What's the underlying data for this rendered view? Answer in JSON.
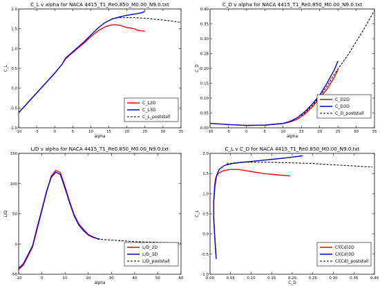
{
  "chart_data": [
    {
      "type": "line",
      "title": "C_L v alpha for NACA 4415_T1_Re0.850_M0.00_N9.0.txt",
      "xlabel": "alpha",
      "ylabel": "C_L",
      "xlim": [
        -10,
        35
      ],
      "ylim": [
        -1.0,
        2.0
      ],
      "xticks": [
        -10,
        -5,
        0,
        5,
        10,
        15,
        20,
        25,
        30,
        35
      ],
      "yticks": [
        -1.0,
        -0.5,
        0.0,
        0.5,
        1.0,
        1.5,
        2.0
      ],
      "xtick_labels": [
        "-10",
        "-5",
        "0",
        "5",
        "10",
        "15",
        "20",
        "25",
        "30",
        "35"
      ],
      "ytick_labels": [
        "-1.0",
        "-0.5",
        "0.0",
        "0.5",
        "1.0",
        "1.5",
        "2.0"
      ],
      "legend_position": "bottom-right",
      "series": [
        {
          "name": "C_L2D",
          "color": "#ff0000",
          "style": "solid",
          "points": [
            [
              -10,
              -0.62
            ],
            [
              -8,
              -0.42
            ],
            [
              -6,
              -0.22
            ],
            [
              -4,
              -0.02
            ],
            [
              -2,
              0.18
            ],
            [
              0,
              0.38
            ],
            [
              2,
              0.6
            ],
            [
              3,
              0.74
            ],
            [
              4,
              0.82
            ],
            [
              6,
              0.98
            ],
            [
              8,
              1.13
            ],
            [
              10,
              1.3
            ],
            [
              12,
              1.45
            ],
            [
              14,
              1.55
            ],
            [
              15,
              1.58
            ],
            [
              16,
              1.6
            ],
            [
              17,
              1.6
            ],
            [
              18,
              1.59
            ],
            [
              19,
              1.56
            ],
            [
              20,
              1.53
            ],
            [
              21,
              1.52
            ],
            [
              22,
              1.5
            ],
            [
              23,
              1.46
            ],
            [
              24,
              1.45
            ],
            [
              25,
              1.44
            ]
          ]
        },
        {
          "name": "C_L3D",
          "color": "#0000cc",
          "style": "solid",
          "points": [
            [
              -10,
              -0.62
            ],
            [
              -8,
              -0.42
            ],
            [
              -6,
              -0.22
            ],
            [
              -4,
              -0.02
            ],
            [
              -2,
              0.18
            ],
            [
              0,
              0.38
            ],
            [
              2,
              0.6
            ],
            [
              3,
              0.76
            ],
            [
              4,
              0.84
            ],
            [
              6,
              1.0
            ],
            [
              8,
              1.16
            ],
            [
              10,
              1.34
            ],
            [
              12,
              1.52
            ],
            [
              14,
              1.66
            ],
            [
              16,
              1.75
            ],
            [
              18,
              1.8
            ],
            [
              20,
              1.84
            ],
            [
              22,
              1.87
            ],
            [
              24,
              1.9
            ],
            [
              25,
              1.94
            ]
          ]
        },
        {
          "name": "C_L_poststall",
          "color": "#000000",
          "style": "dashed",
          "points": [
            [
              16,
              1.76
            ],
            [
              18,
              1.78
            ],
            [
              20,
              1.78
            ],
            [
              22,
              1.78
            ],
            [
              24,
              1.77
            ],
            [
              26,
              1.76
            ],
            [
              28,
              1.74
            ],
            [
              30,
              1.72
            ],
            [
              32,
              1.7
            ],
            [
              35,
              1.66
            ]
          ]
        }
      ]
    },
    {
      "type": "line",
      "title": "C_D v alpha for NACA 4415_T1_Re0.850_M0.00_N9.0.txt",
      "xlabel": "alpha",
      "ylabel": "C_D",
      "xlim": [
        -10,
        35
      ],
      "ylim": [
        0.0,
        0.4
      ],
      "xticks": [
        -10,
        -5,
        0,
        5,
        10,
        15,
        20,
        25,
        30,
        35
      ],
      "yticks": [
        0.0,
        0.05,
        0.1,
        0.15,
        0.2,
        0.25,
        0.3,
        0.35,
        0.4
      ],
      "xtick_labels": [
        "-10",
        "-5",
        "0",
        "5",
        "10",
        "15",
        "20",
        "25",
        "30",
        "35"
      ],
      "ytick_labels": [
        "0.00",
        "0.05",
        "0.10",
        "0.15",
        "0.20",
        "0.25",
        "0.30",
        "0.35",
        "0.40"
      ],
      "legend_position": "center-right",
      "series": [
        {
          "name": "C_D2D",
          "color": "#ff0000",
          "style": "solid",
          "points": [
            [
              -10,
              0.015
            ],
            [
              -5,
              0.011
            ],
            [
              0,
              0.008
            ],
            [
              5,
              0.009
            ],
            [
              10,
              0.014
            ],
            [
              12,
              0.02
            ],
            [
              14,
              0.03
            ],
            [
              16,
              0.047
            ],
            [
              18,
              0.07
            ],
            [
              20,
              0.1
            ],
            [
              22,
              0.13
            ],
            [
              24,
              0.17
            ],
            [
              25,
              0.195
            ]
          ]
        },
        {
          "name": "C_D3D",
          "color": "#0000cc",
          "style": "solid",
          "points": [
            [
              -10,
              0.015
            ],
            [
              -5,
              0.011
            ],
            [
              0,
              0.008
            ],
            [
              5,
              0.009
            ],
            [
              10,
              0.015
            ],
            [
              12,
              0.022
            ],
            [
              14,
              0.035
            ],
            [
              16,
              0.055
            ],
            [
              18,
              0.08
            ],
            [
              20,
              0.11
            ],
            [
              22,
              0.15
            ],
            [
              24,
              0.195
            ],
            [
              25,
              0.225
            ]
          ]
        },
        {
          "name": "C_D_poststall",
          "color": "#000000",
          "style": "dashed",
          "points": [
            [
              15,
              0.04
            ],
            [
              18,
              0.075
            ],
            [
              20,
              0.105
            ],
            [
              22,
              0.14
            ],
            [
              24,
              0.18
            ],
            [
              26,
              0.215
            ],
            [
              28,
              0.25
            ],
            [
              30,
              0.29
            ],
            [
              32,
              0.33
            ],
            [
              35,
              0.395
            ]
          ]
        }
      ]
    },
    {
      "type": "line",
      "title": "L/D v alpha for NACA 4415_T1_Re0.850_M0.00_N9.0.txt",
      "xlabel": "alpha",
      "ylabel": "L/D",
      "xlim": [
        -10,
        60
      ],
      "ylim": [
        -50,
        150
      ],
      "xticks": [
        -10,
        0,
        10,
        20,
        30,
        40,
        50,
        60
      ],
      "yticks": [
        -50,
        0,
        50,
        100,
        150
      ],
      "xtick_labels": [
        "-10",
        "0",
        "10",
        "20",
        "30",
        "40",
        "50",
        "60"
      ],
      "ytick_labels": [
        "-50",
        "0",
        "50",
        "100",
        "150"
      ],
      "legend_position": "bottom-right",
      "series": [
        {
          "name": "L/D_2D",
          "color": "#ff0000",
          "style": "solid",
          "points": [
            [
              -10,
              -42
            ],
            [
              -8,
              -35
            ],
            [
              -6,
              -20
            ],
            [
              -4,
              -5
            ],
            [
              -2,
              25
            ],
            [
              0,
              55
            ],
            [
              2,
              85
            ],
            [
              4,
              112
            ],
            [
              6,
              122
            ],
            [
              8,
              118
            ],
            [
              10,
              95
            ],
            [
              12,
              70
            ],
            [
              14,
              48
            ],
            [
              16,
              33
            ],
            [
              18,
              24
            ],
            [
              20,
              16
            ],
            [
              22,
              12
            ],
            [
              24,
              9
            ],
            [
              25,
              8
            ]
          ]
        },
        {
          "name": "L/D_3D",
          "color": "#0000cc",
          "style": "solid",
          "points": [
            [
              -10,
              -40
            ],
            [
              -8,
              -33
            ],
            [
              -6,
              -18
            ],
            [
              -4,
              -3
            ],
            [
              -2,
              28
            ],
            [
              0,
              57
            ],
            [
              2,
              87
            ],
            [
              4,
              110
            ],
            [
              6,
              119
            ],
            [
              8,
              115
            ],
            [
              10,
              92
            ],
            [
              12,
              68
            ],
            [
              14,
              46
            ],
            [
              16,
              31
            ],
            [
              18,
              22
            ],
            [
              20,
              15
            ],
            [
              22,
              11
            ],
            [
              24,
              9
            ],
            [
              25,
              8
            ]
          ]
        },
        {
          "name": "L/D_poststall",
          "color": "#000000",
          "style": "dashed",
          "points": [
            [
              24,
              8
            ],
            [
              28,
              7
            ],
            [
              32,
              6
            ],
            [
              36,
              5
            ],
            [
              40,
              4
            ],
            [
              44,
              3.5
            ],
            [
              48,
              3
            ],
            [
              52,
              2.5
            ],
            [
              56,
              2
            ],
            [
              60,
              1.5
            ]
          ]
        }
      ]
    },
    {
      "type": "line",
      "title": "C_L v C_D for NACA 4415_T1_Re0.850_M0.00_N9.0.txt",
      "xlabel": "C_D",
      "ylabel": "C_L",
      "xlim": [
        0.0,
        0.4
      ],
      "ylim": [
        -1.0,
        2.0
      ],
      "xticks": [
        0.0,
        0.05,
        0.1,
        0.15,
        0.2,
        0.25,
        0.3,
        0.35,
        0.4
      ],
      "yticks": [
        -1.0,
        -0.5,
        0.0,
        0.5,
        1.0,
        1.5,
        2.0
      ],
      "xtick_labels": [
        "0.00",
        "0.05",
        "0.10",
        "0.15",
        "0.20",
        "0.25",
        "0.30",
        "0.35",
        "0.40"
      ],
      "ytick_labels": [
        "-1.0",
        "-0.5",
        "0.0",
        "0.5",
        "1.0",
        "1.5",
        "2.0"
      ],
      "legend_position": "bottom-right",
      "series": [
        {
          "name": "Cl(Cd)2D",
          "color": "#ff0000",
          "style": "solid",
          "points": [
            [
              0.015,
              -0.62
            ],
            [
              0.013,
              -0.3
            ],
            [
              0.011,
              0.0
            ],
            [
              0.009,
              0.4
            ],
            [
              0.009,
              0.8
            ],
            [
              0.011,
              1.2
            ],
            [
              0.014,
              1.4
            ],
            [
              0.02,
              1.5
            ],
            [
              0.03,
              1.56
            ],
            [
              0.047,
              1.6
            ],
            [
              0.07,
              1.6
            ],
            [
              0.1,
              1.55
            ],
            [
              0.13,
              1.5
            ],
            [
              0.17,
              1.46
            ],
            [
              0.195,
              1.44
            ]
          ]
        },
        {
          "name": "Cl(Cd)3D",
          "color": "#0000cc",
          "style": "solid",
          "points": [
            [
              0.015,
              -0.62
            ],
            [
              0.013,
              -0.3
            ],
            [
              0.011,
              0.0
            ],
            [
              0.009,
              0.4
            ],
            [
              0.009,
              0.8
            ],
            [
              0.012,
              1.2
            ],
            [
              0.016,
              1.45
            ],
            [
              0.022,
              1.6
            ],
            [
              0.035,
              1.7
            ],
            [
              0.055,
              1.75
            ],
            [
              0.08,
              1.78
            ],
            [
              0.11,
              1.81
            ],
            [
              0.15,
              1.85
            ],
            [
              0.195,
              1.9
            ],
            [
              0.225,
              1.94
            ]
          ]
        },
        {
          "name": "Cl(Cd)_poststall",
          "color": "#000000",
          "style": "dashed",
          "points": [
            [
              0.04,
              1.74
            ],
            [
              0.075,
              1.78
            ],
            [
              0.105,
              1.78
            ],
            [
              0.14,
              1.78
            ],
            [
              0.18,
              1.77
            ],
            [
              0.215,
              1.76
            ],
            [
              0.25,
              1.75
            ],
            [
              0.29,
              1.72
            ],
            [
              0.33,
              1.7
            ],
            [
              0.395,
              1.66
            ]
          ]
        }
      ]
    }
  ]
}
